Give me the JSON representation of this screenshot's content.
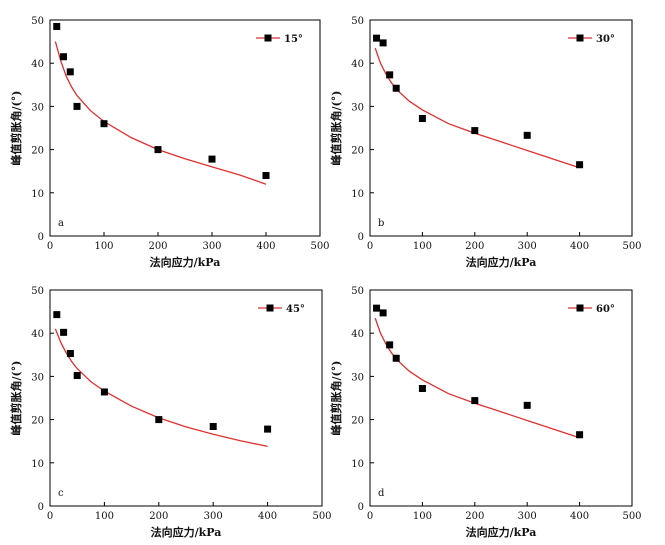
{
  "chart_data": [
    {
      "type": "scatter",
      "panel_label": "a",
      "xlabel": "法向应力/kPa",
      "ylabel": "峰值剪胀角/(°)",
      "xlim": [
        0,
        500
      ],
      "ylim": [
        0,
        50
      ],
      "xticks": [
        "0",
        "100",
        "200",
        "300",
        "400",
        "500"
      ],
      "yticks": [
        "0",
        "10",
        "20",
        "30",
        "40",
        "50"
      ],
      "legend": "15°",
      "legend_position": "top-right",
      "series": [
        {
          "name": "15°",
          "style": "markers",
          "x": [
            12.5,
            25,
            37.5,
            50,
            100,
            200,
            300,
            400
          ],
          "y": [
            48.5,
            41.5,
            38,
            30,
            26,
            20,
            17.8,
            14
          ]
        },
        {
          "style": "line",
          "x": [
            10,
            20,
            30,
            40,
            50,
            75,
            100,
            150,
            200,
            250,
            300,
            350,
            400
          ],
          "y": [
            45,
            40.5,
            37,
            34.5,
            32.5,
            29,
            26.5,
            22.8,
            20,
            17.9,
            16,
            14.2,
            12
          ]
        }
      ],
      "colors": {
        "marker": "#000000",
        "line": "#e03030"
      }
    },
    {
      "type": "scatter",
      "panel_label": "b",
      "xlabel": "法向应力/kPa",
      "ylabel": "峰值剪胀角/(°)",
      "xlim": [
        0,
        500
      ],
      "ylim": [
        0,
        50
      ],
      "xticks": [
        "0",
        "100",
        "200",
        "300",
        "400",
        "500"
      ],
      "yticks": [
        "0",
        "10",
        "20",
        "30",
        "40",
        "50"
      ],
      "legend": "30°",
      "legend_position": "top-right",
      "series": [
        {
          "name": "30°",
          "style": "markers",
          "x": [
            12.5,
            25,
            37.5,
            50,
            100,
            200,
            300,
            400
          ],
          "y": [
            45.8,
            44.7,
            37.3,
            34.2,
            27.2,
            24.4,
            23.3,
            16.5
          ]
        },
        {
          "style": "line",
          "x": [
            10,
            20,
            30,
            40,
            50,
            75,
            100,
            150,
            200,
            250,
            300,
            350,
            400
          ],
          "y": [
            43.5,
            40,
            37.6,
            35.6,
            34,
            31.2,
            29.2,
            26,
            23.8,
            21.8,
            19.8,
            17.8,
            15.8
          ]
        }
      ],
      "colors": {
        "marker": "#000000",
        "line": "#e03030"
      }
    },
    {
      "type": "scatter",
      "panel_label": "c",
      "xlabel": "法向应力/kPa",
      "ylabel": "峰值剪胀角/(°)",
      "xlim": [
        0,
        500
      ],
      "ylim": [
        0,
        50
      ],
      "xticks": [
        "0",
        "100",
        "200",
        "300",
        "400",
        "500"
      ],
      "yticks": [
        "0",
        "10",
        "20",
        "30",
        "40",
        "50"
      ],
      "legend": "45°",
      "legend_position": "top-right",
      "series": [
        {
          "name": "45°",
          "style": "markers",
          "x": [
            12.5,
            25,
            37.5,
            50,
            100,
            200,
            300,
            400
          ],
          "y": [
            44.3,
            40.2,
            35.3,
            30.2,
            26.4,
            20,
            18.4,
            17.8
          ]
        },
        {
          "style": "line",
          "x": [
            10,
            20,
            30,
            40,
            50,
            75,
            100,
            150,
            200,
            250,
            300,
            350,
            400
          ],
          "y": [
            41,
            37.8,
            35.4,
            33.4,
            31.8,
            28.8,
            26.6,
            23.1,
            20.4,
            18.3,
            16.6,
            15.1,
            13.8
          ]
        }
      ],
      "colors": {
        "marker": "#000000",
        "line": "#e03030"
      }
    },
    {
      "type": "scatter",
      "panel_label": "d",
      "xlabel": "法向应力/kPa",
      "ylabel": "峰值剪胀角/(°)",
      "xlim": [
        0,
        500
      ],
      "ylim": [
        0,
        50
      ],
      "xticks": [
        "0",
        "100",
        "200",
        "300",
        "400",
        "500"
      ],
      "yticks": [
        "0",
        "10",
        "20",
        "30",
        "40",
        "50"
      ],
      "legend": "60°",
      "legend_position": "top-right",
      "series": [
        {
          "name": "60°",
          "style": "markers",
          "x": [
            12.5,
            25,
            37.5,
            50,
            100,
            200,
            300,
            400
          ],
          "y": [
            45.8,
            44.7,
            37.3,
            34.2,
            27.2,
            24.4,
            23.3,
            16.5
          ]
        },
        {
          "style": "line",
          "x": [
            10,
            20,
            30,
            40,
            50,
            75,
            100,
            150,
            200,
            250,
            300,
            350,
            400
          ],
          "y": [
            43.5,
            40,
            37.6,
            35.6,
            34,
            31.2,
            29.2,
            26,
            23.8,
            21.8,
            19.8,
            17.8,
            15.8
          ]
        }
      ],
      "colors": {
        "marker": "#000000",
        "line": "#e03030"
      }
    }
  ]
}
